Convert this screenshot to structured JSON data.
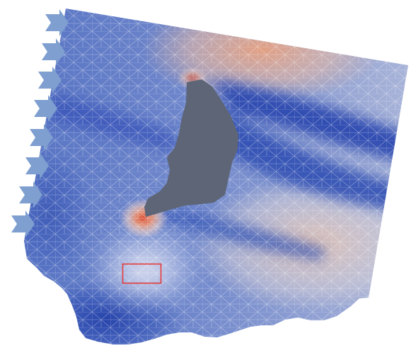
{
  "colors": {
    "field_low": "#2f4fb4",
    "field_mid": "#8fa6dc",
    "field_neutral": "#e9e3e6",
    "field_high": "#e57a57",
    "obstacle": "#5d6577",
    "inflow_arrow": "#7e9fcf",
    "mesh_lines": "#ffffff",
    "region_of_interest": "#e43a3a"
  },
  "icons": {
    "inflow": "right-arrow-icon"
  },
  "inflow_arrow_count": 8
}
